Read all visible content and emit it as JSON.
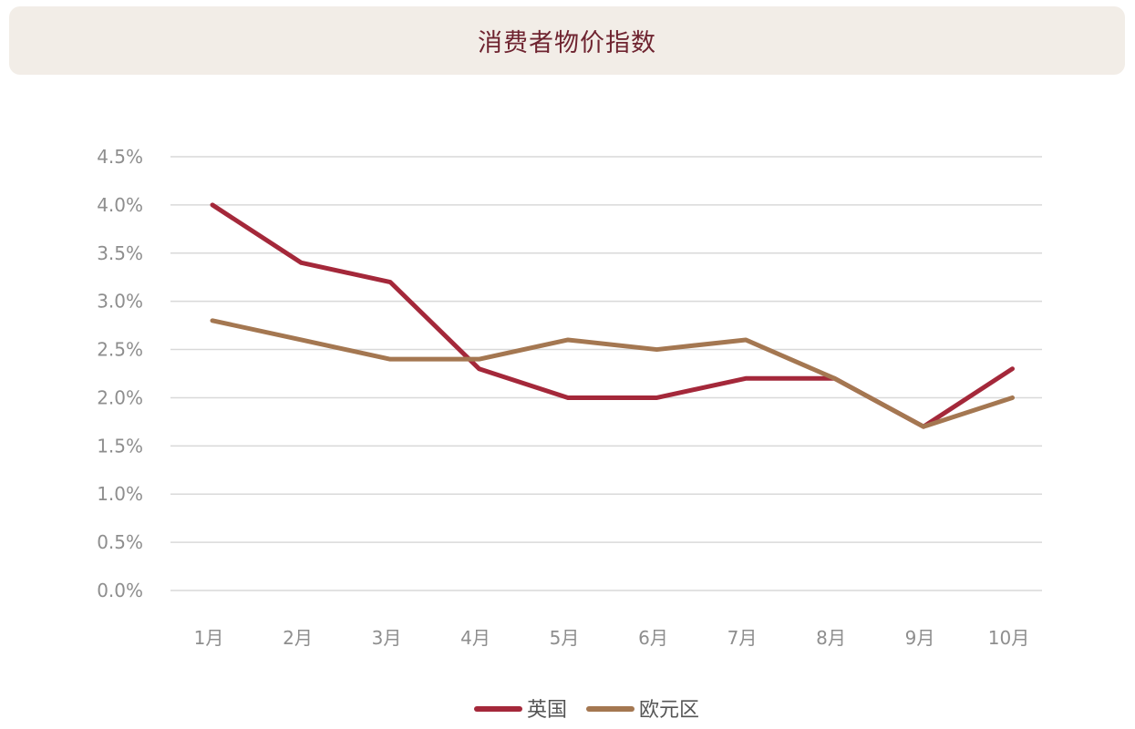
{
  "chart_data": {
    "type": "line",
    "title": "消费者物价指数",
    "categories": [
      "1月",
      "2月",
      "3月",
      "4月",
      "5月",
      "6月",
      "7月",
      "8月",
      "9月",
      "10月"
    ],
    "series": [
      {
        "name": "英国",
        "color": "#a4283a",
        "values": [
          4.0,
          3.4,
          3.2,
          2.3,
          2.0,
          2.0,
          2.2,
          2.2,
          1.7,
          2.3
        ]
      },
      {
        "name": "欧元区",
        "color": "#a47751",
        "values": [
          2.8,
          2.6,
          2.4,
          2.4,
          2.6,
          2.5,
          2.6,
          2.2,
          1.7,
          2.0
        ]
      }
    ],
    "ylim": [
      0,
      4.5
    ],
    "yticks": [
      "0.0%",
      "0.5%",
      "1.0%",
      "1.5%",
      "2.0%",
      "2.5%",
      "3.0%",
      "3.5%",
      "4.0%",
      "4.5%"
    ],
    "grid": true,
    "legend_position": "bottom-center",
    "xlabel": "",
    "ylabel": ""
  }
}
